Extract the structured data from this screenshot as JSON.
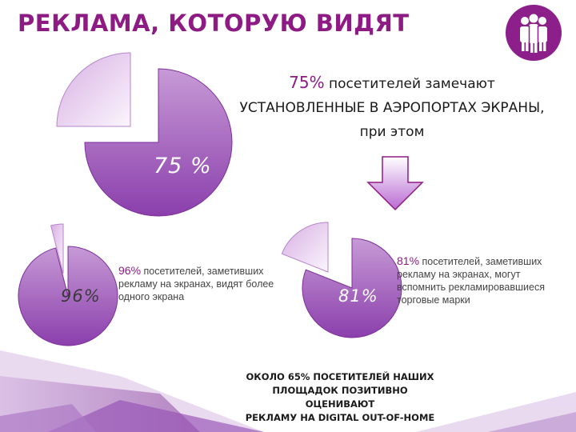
{
  "title": "РЕКЛАМА, КОТОРУЮ ВИДЯТ",
  "headline": {
    "percent": "75%",
    "line1_rest": " посетителей замечают",
    "line2": "УСТАНОВЛЕННЫЕ В АЭРОПОРТАХ ЭКРАНЫ,",
    "line3": "при этом"
  },
  "notes": {
    "left_pct": "96%",
    "left_text": " посетителей, заметивших рекламу на экранах, видят более одного экрана",
    "right_pct": "81%",
    "right_text": " посетителей, заметивших рекламу на экранах, могут вспомнить рекламировавшиеся торговые марки"
  },
  "footer": {
    "line1": "ОКОЛО 65% ПОСЕТИТЕЛЕЙ НАШИХ",
    "line2": "ПЛОЩАДОК ПОЗИТИВНО ОЦЕНИВАЮТ",
    "line3": "РЕКЛАМУ НА DIGITAL OUT-OF-HOME"
  },
  "logo_icon": "people-group-icon",
  "colors": {
    "brand": "#8e1a83",
    "slice_fill": "#9a52b8",
    "exploded_slice_fill": "#e6cdee"
  },
  "chart_data": [
    {
      "type": "pie",
      "label": "75 %",
      "values": [
        75,
        25
      ]
    },
    {
      "type": "pie",
      "label": "96%",
      "values": [
        96,
        4
      ]
    },
    {
      "type": "pie",
      "label": "81%",
      "values": [
        81,
        19
      ]
    }
  ]
}
